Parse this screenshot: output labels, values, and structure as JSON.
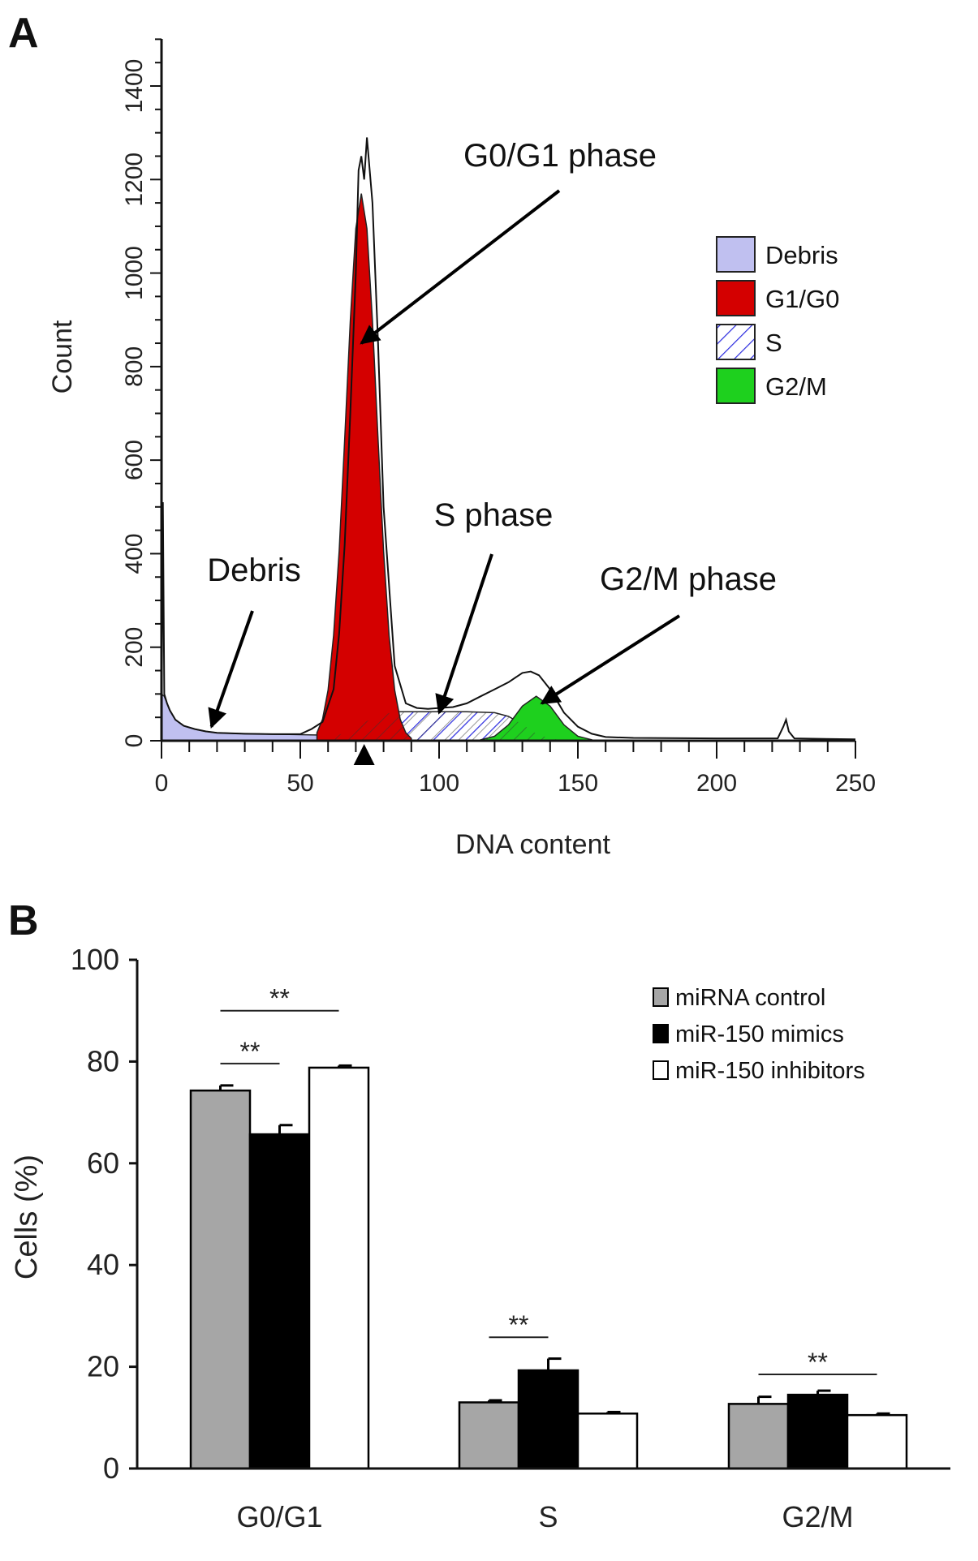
{
  "chart_data": [
    {
      "panel_label": "A",
      "type": "area",
      "xlabel": "DNA content",
      "ylabel": "Count",
      "xlim": [
        0,
        250
      ],
      "ylim": [
        0,
        1400
      ],
      "xticks": [
        "0",
        "50",
        "100",
        "150",
        "200",
        "250"
      ],
      "yticks": [
        "0",
        "200",
        "400",
        "600",
        "800",
        "1000",
        "1200",
        "1400"
      ],
      "legend": {
        "placement": "right",
        "entries": [
          {
            "name": "Debris",
            "color": "#c0c0f0"
          },
          {
            "name": "G1/G0",
            "color": "#d40000"
          },
          {
            "name": "S",
            "color": "hatched-blue"
          },
          {
            "name": "G2/M",
            "color": "#1ed01e"
          }
        ]
      },
      "series": [
        {
          "key": "debris",
          "color": "#c0c0f0",
          "x": [
            0,
            1,
            2,
            3,
            5,
            8,
            12,
            16,
            20,
            30,
            40,
            50,
            60,
            70,
            80
          ],
          "y": [
            100,
            95,
            80,
            65,
            45,
            32,
            25,
            20,
            17,
            15,
            14,
            13,
            12,
            10,
            8
          ]
        },
        {
          "key": "g1",
          "color": "#d40000",
          "x": [
            56,
            58,
            60,
            62,
            64,
            66,
            68,
            70,
            72,
            74,
            76,
            78,
            80,
            82,
            84,
            86,
            88,
            90
          ],
          "y": [
            17,
            46,
            108,
            225,
            406,
            645,
            898,
            1095,
            1170,
            1095,
            898,
            645,
            406,
            225,
            108,
            46,
            17,
            5
          ]
        },
        {
          "key": "s",
          "color": "#3030e0",
          "x": [
            55,
            60,
            65,
            70,
            75,
            80,
            85,
            90,
            100,
            110,
            120,
            125,
            130,
            135,
            140,
            145
          ],
          "y": [
            0,
            5,
            15,
            30,
            45,
            57,
            62,
            62,
            62,
            62,
            60,
            52,
            35,
            15,
            5,
            0
          ]
        },
        {
          "key": "g2m",
          "color": "#1ed01e",
          "x": [
            115,
            120,
            125,
            130,
            135,
            140,
            145,
            150,
            155
          ],
          "y": [
            2,
            9.5,
            34,
            74,
            95,
            74,
            34,
            9.5,
            2
          ]
        },
        {
          "key": "total",
          "color": "#000000",
          "x": [
            0,
            0.5,
            1,
            1.5,
            2,
            3,
            5,
            8,
            12,
            16,
            20,
            30,
            40,
            50,
            54,
            58,
            62,
            64,
            66,
            68,
            70,
            71,
            72,
            73,
            74,
            76,
            78,
            80,
            84,
            88,
            92,
            96,
            100,
            105,
            110,
            115,
            120,
            125,
            130,
            133,
            136,
            140,
            145,
            150,
            155,
            160,
            170,
            200,
            222,
            224,
            225,
            226,
            228,
            250
          ],
          "y": [
            0,
            510,
            100,
            90,
            80,
            65,
            45,
            32,
            25,
            20,
            17,
            15,
            14,
            14,
            25,
            40,
            110,
            230,
            420,
            700,
            1000,
            1220,
            1250,
            1200,
            1290,
            1150,
            850,
            500,
            160,
            80,
            70,
            68,
            70,
            72,
            80,
            95,
            110,
            125,
            145,
            148,
            140,
            110,
            60,
            30,
            15,
            8,
            6,
            5,
            5,
            30,
            45,
            20,
            5,
            3
          ]
        }
      ],
      "annotations": [
        {
          "text": "G0/G1 phase",
          "points_to": [
            72,
            850
          ]
        },
        {
          "text": "S phase",
          "points_to": [
            100,
            60
          ]
        },
        {
          "text": "G2/M phase",
          "points_to": [
            137,
            80
          ]
        },
        {
          "text": "Debris",
          "points_to": [
            18,
            30
          ]
        }
      ],
      "marker_x": 73
    },
    {
      "panel_label": "B",
      "type": "bar",
      "ylabel": "Cells (%)",
      "ylim": [
        0,
        100
      ],
      "yticks": [
        "0",
        "20",
        "40",
        "60",
        "80",
        "100"
      ],
      "categories": [
        "G0/G1",
        "S",
        "G2/M"
      ],
      "legend": {
        "placement": "top-right"
      },
      "series": [
        {
          "name": "miRNA control",
          "color": "#a6a6a6",
          "values": [
            74.3,
            13.0,
            12.7
          ],
          "errors": [
            1.0,
            0.4,
            1.4
          ]
        },
        {
          "name": "miR-150 mimics",
          "color": "#000000",
          "values": [
            65.7,
            19.3,
            14.5
          ],
          "errors": [
            1.8,
            2.3,
            0.8
          ]
        },
        {
          "name": "miR-150 inhibitors",
          "color": "#ffffff",
          "values": [
            78.8,
            10.8,
            10.5
          ],
          "errors": [
            0.4,
            0.3,
            0.3
          ]
        }
      ],
      "significance": [
        {
          "category": "G0/G1",
          "from": 0,
          "to": 2,
          "y": 90,
          "label": "**"
        },
        {
          "category": "G0/G1",
          "from": 0,
          "to": 1,
          "y": 79.6,
          "label": "**"
        },
        {
          "category": "S",
          "from": 0,
          "to": 1,
          "y": 25.8,
          "label": "**"
        },
        {
          "category": "G2/M",
          "from": 0,
          "to": 2,
          "y": 18.5,
          "label": "**"
        }
      ]
    }
  ]
}
